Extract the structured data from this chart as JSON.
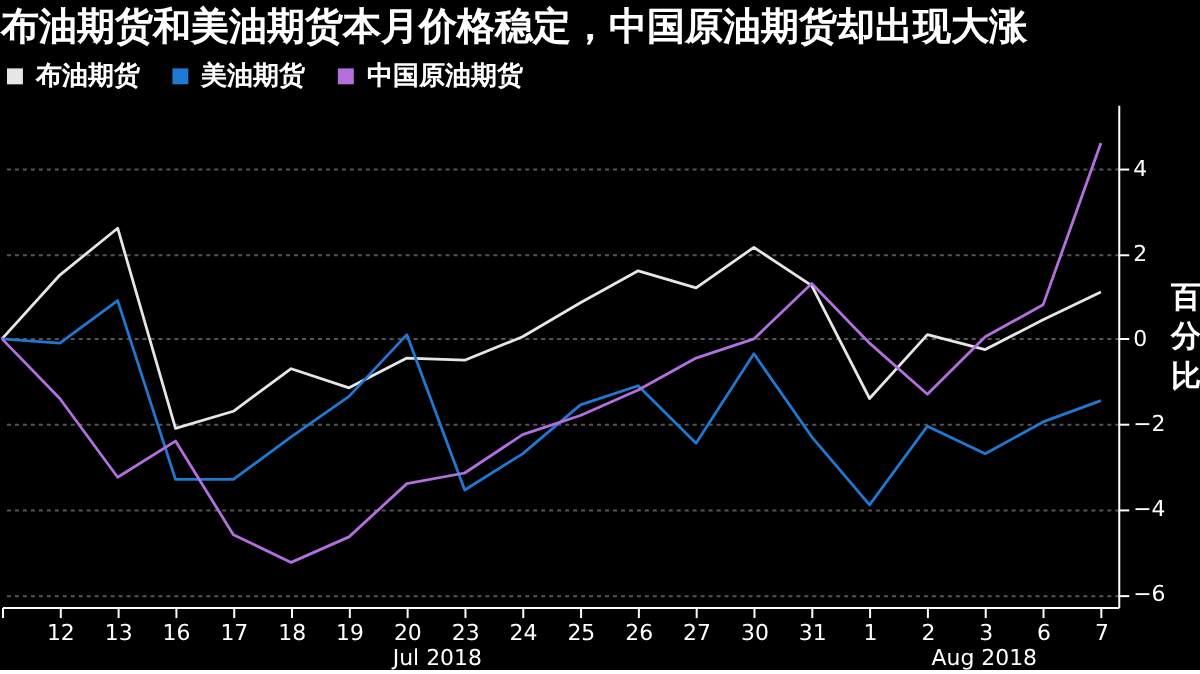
{
  "chart_data": {
    "type": "line",
    "title": "布油期货和美油期货本月价格稳定，中国原油期货却出现大涨",
    "categories": [
      null,
      "12",
      "13",
      "16",
      "17",
      "18",
      "19",
      "20",
      "23",
      "24",
      "25",
      "26",
      "27",
      "30",
      "31",
      "1",
      "2",
      "3",
      "6",
      "7"
    ],
    "series": [
      {
        "name": "布油期货",
        "color": "#e6e6e6",
        "values": [
          0,
          1.5,
          2.6,
          -2.1,
          -1.7,
          -0.7,
          -1.15,
          -0.45,
          -0.5,
          0.05,
          0.85,
          1.6,
          1.2,
          2.15,
          1.25,
          -1.4,
          0.1,
          -0.25,
          0.45,
          1.1
        ]
      },
      {
        "name": "美油期货",
        "color": "#1f78d1",
        "values": [
          0,
          -0.1,
          0.9,
          -3.3,
          -3.3,
          -2.3,
          -1.35,
          0.1,
          -3.55,
          -2.7,
          -1.55,
          -1.1,
          -2.45,
          -0.35,
          -2.3,
          -3.9,
          -2.05,
          -2.7,
          -1.95,
          -1.45
        ]
      },
      {
        "name": "中国原油期货",
        "color": "#b36fe0",
        "values": [
          0,
          -1.4,
          -3.25,
          -2.4,
          -4.6,
          -5.25,
          -4.65,
          -3.4,
          -3.15,
          -2.25,
          -1.8,
          -1.2,
          -0.45,
          0,
          1.3,
          -0.1,
          -1.3,
          0.05,
          0.8,
          4.6
        ]
      }
    ],
    "ylabel": "百分比",
    "ylim": [
      -6.3,
      5.5
    ],
    "yticks": [
      -6,
      -4,
      -2,
      0,
      2,
      4
    ],
    "annotations": [
      "Jul 2018",
      "Aug 2018"
    ],
    "grid": "y",
    "legend": "top",
    "marker": "none",
    "line_style": "solid"
  }
}
